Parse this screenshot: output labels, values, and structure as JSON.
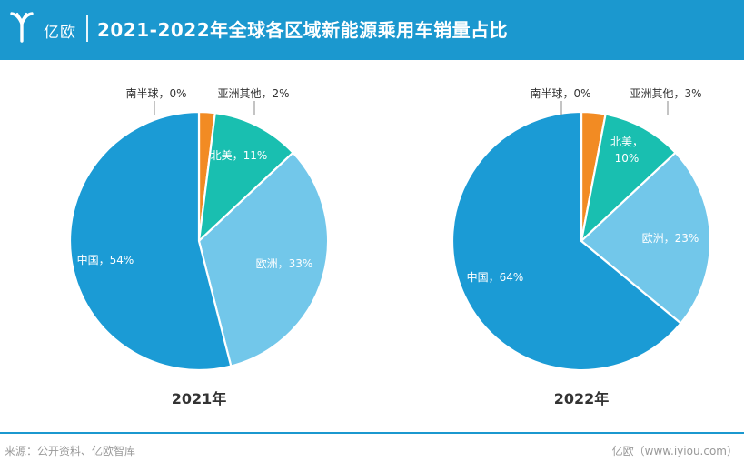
{
  "header": {
    "logo_text": "亿欧",
    "title": "2021-2022年全球各区域新能源乘用车销量占比"
  },
  "chart_data": [
    {
      "type": "pie",
      "title": "2021年",
      "slices": [
        {
          "label": "南半球",
          "value": 0,
          "display": "0%",
          "color": "#9fa3a6"
        },
        {
          "label": "亚洲其他",
          "value": 2,
          "display": "2%",
          "color": "#f28b23"
        },
        {
          "label": "北美",
          "value": 11,
          "display": "11%",
          "color": "#19bfb0"
        },
        {
          "label": "欧洲",
          "value": 33,
          "display": "33%",
          "color": "#72c7ea"
        },
        {
          "label": "中国",
          "value": 54,
          "display": "54%",
          "color": "#1b9bd5"
        }
      ]
    },
    {
      "type": "pie",
      "title": "2022年",
      "slices": [
        {
          "label": "南半球",
          "value": 0,
          "display": "0%",
          "color": "#9fa3a6"
        },
        {
          "label": "亚洲其他",
          "value": 3,
          "display": "3%",
          "color": "#f28b23"
        },
        {
          "label": "北美",
          "value": 10,
          "display": "10%",
          "color": "#19bfb0"
        },
        {
          "label": "欧洲",
          "value": 23,
          "display": "23%",
          "color": "#72c7ea"
        },
        {
          "label": "中国",
          "value": 64,
          "display": "64%",
          "color": "#1b9bd5"
        }
      ]
    }
  ],
  "footer": {
    "source": "来源：公开资料、亿欧智库",
    "credit": "亿欧（www.iyiou.com）"
  }
}
